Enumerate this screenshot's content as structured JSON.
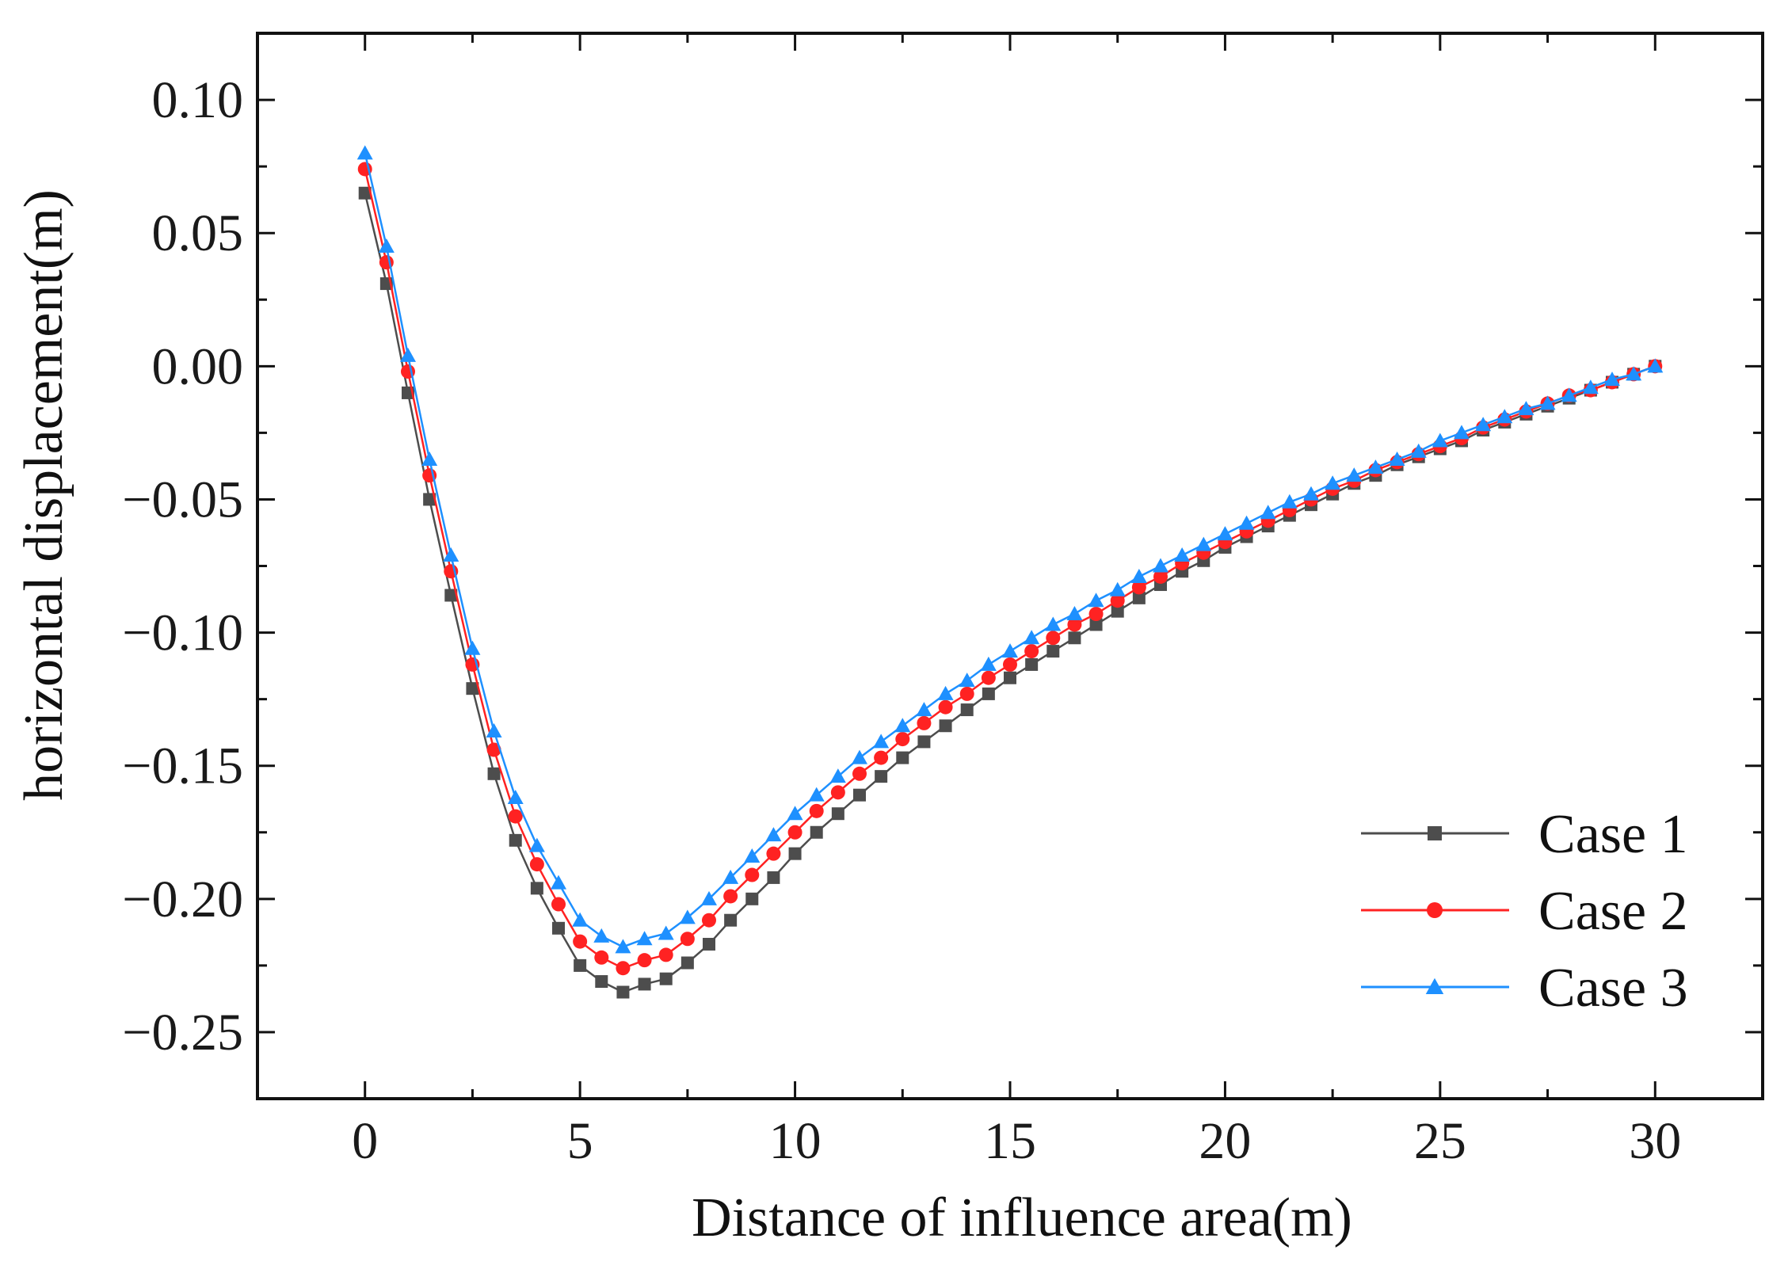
{
  "chart_data": {
    "type": "line",
    "title": "",
    "xlabel": "Distance of influence area(m)",
    "ylabel": "horizontal displacement(m)",
    "xlim": [
      -2.5,
      32.5
    ],
    "ylim": [
      -0.275,
      0.125
    ],
    "xticks": [
      0,
      5,
      10,
      15,
      20,
      25,
      30
    ],
    "xtick_labels": [
      "0",
      "5",
      "10",
      "15",
      "20",
      "25",
      "30"
    ],
    "yticks": [
      0.1,
      0.05,
      0.0,
      -0.05,
      -0.1,
      -0.15,
      -0.2,
      -0.25
    ],
    "ytick_labels": [
      "0.10",
      "0.05",
      "0.00",
      "−0.05",
      "−0.10",
      "−0.15",
      "−0.20",
      "−0.25"
    ],
    "grid": false,
    "legend_position": "bottom-right",
    "x": [
      0,
      0.5,
      1.0,
      1.5,
      2.0,
      2.5,
      3.0,
      3.5,
      4.0,
      4.5,
      5.0,
      5.5,
      6.0,
      6.5,
      7.0,
      7.5,
      8.0,
      8.5,
      9.0,
      9.5,
      10.0,
      10.5,
      11.0,
      11.5,
      12.0,
      12.5,
      13.0,
      13.5,
      14.0,
      14.5,
      15.0,
      15.5,
      16.0,
      16.5,
      17.0,
      17.5,
      18.0,
      18.5,
      19.0,
      19.5,
      20.0,
      20.5,
      21.0,
      21.5,
      22.0,
      22.5,
      23.0,
      23.5,
      24.0,
      24.5,
      25.0,
      25.5,
      26.0,
      26.5,
      27.0,
      27.5,
      28.0,
      28.5,
      29.0,
      29.5,
      30.0
    ],
    "series": [
      {
        "name": "Case 1",
        "color": "#4d4d4d",
        "marker": "square",
        "values": [
          0.065,
          0.031,
          -0.01,
          -0.05,
          -0.086,
          -0.121,
          -0.153,
          -0.178,
          -0.196,
          -0.211,
          -0.225,
          -0.231,
          -0.235,
          -0.232,
          -0.23,
          -0.224,
          -0.217,
          -0.208,
          -0.2,
          -0.192,
          -0.183,
          -0.175,
          -0.168,
          -0.161,
          -0.154,
          -0.147,
          -0.141,
          -0.135,
          -0.129,
          -0.123,
          -0.117,
          -0.112,
          -0.107,
          -0.102,
          -0.097,
          -0.092,
          -0.087,
          -0.082,
          -0.077,
          -0.073,
          -0.068,
          -0.064,
          -0.06,
          -0.056,
          -0.052,
          -0.048,
          -0.044,
          -0.041,
          -0.037,
          -0.034,
          -0.031,
          -0.028,
          -0.024,
          -0.021,
          -0.018,
          -0.015,
          -0.012,
          -0.009,
          -0.006,
          -0.003,
          0.0
        ]
      },
      {
        "name": "Case 2",
        "color": "#ff2222",
        "marker": "circle",
        "values": [
          0.074,
          0.039,
          -0.002,
          -0.041,
          -0.077,
          -0.112,
          -0.144,
          -0.169,
          -0.187,
          -0.202,
          -0.216,
          -0.222,
          -0.226,
          -0.223,
          -0.221,
          -0.215,
          -0.208,
          -0.199,
          -0.191,
          -0.183,
          -0.175,
          -0.167,
          -0.16,
          -0.153,
          -0.147,
          -0.14,
          -0.134,
          -0.128,
          -0.123,
          -0.117,
          -0.112,
          -0.107,
          -0.102,
          -0.097,
          -0.093,
          -0.088,
          -0.083,
          -0.079,
          -0.074,
          -0.07,
          -0.066,
          -0.062,
          -0.058,
          -0.054,
          -0.05,
          -0.046,
          -0.043,
          -0.039,
          -0.036,
          -0.033,
          -0.03,
          -0.027,
          -0.023,
          -0.02,
          -0.017,
          -0.014,
          -0.011,
          -0.009,
          -0.006,
          -0.003,
          0.0
        ]
      },
      {
        "name": "Case 3",
        "color": "#1e90ff",
        "marker": "triangle",
        "values": [
          0.08,
          0.045,
          0.004,
          -0.035,
          -0.071,
          -0.106,
          -0.137,
          -0.162,
          -0.18,
          -0.194,
          -0.208,
          -0.214,
          -0.218,
          -0.215,
          -0.213,
          -0.207,
          -0.2,
          -0.192,
          -0.184,
          -0.176,
          -0.168,
          -0.161,
          -0.154,
          -0.147,
          -0.141,
          -0.135,
          -0.129,
          -0.123,
          -0.118,
          -0.112,
          -0.107,
          -0.102,
          -0.097,
          -0.093,
          -0.088,
          -0.084,
          -0.079,
          -0.075,
          -0.071,
          -0.067,
          -0.063,
          -0.059,
          -0.055,
          -0.051,
          -0.048,
          -0.044,
          -0.041,
          -0.038,
          -0.035,
          -0.032,
          -0.028,
          -0.025,
          -0.022,
          -0.019,
          -0.016,
          -0.014,
          -0.011,
          -0.008,
          -0.005,
          -0.003,
          0.0
        ]
      }
    ]
  }
}
